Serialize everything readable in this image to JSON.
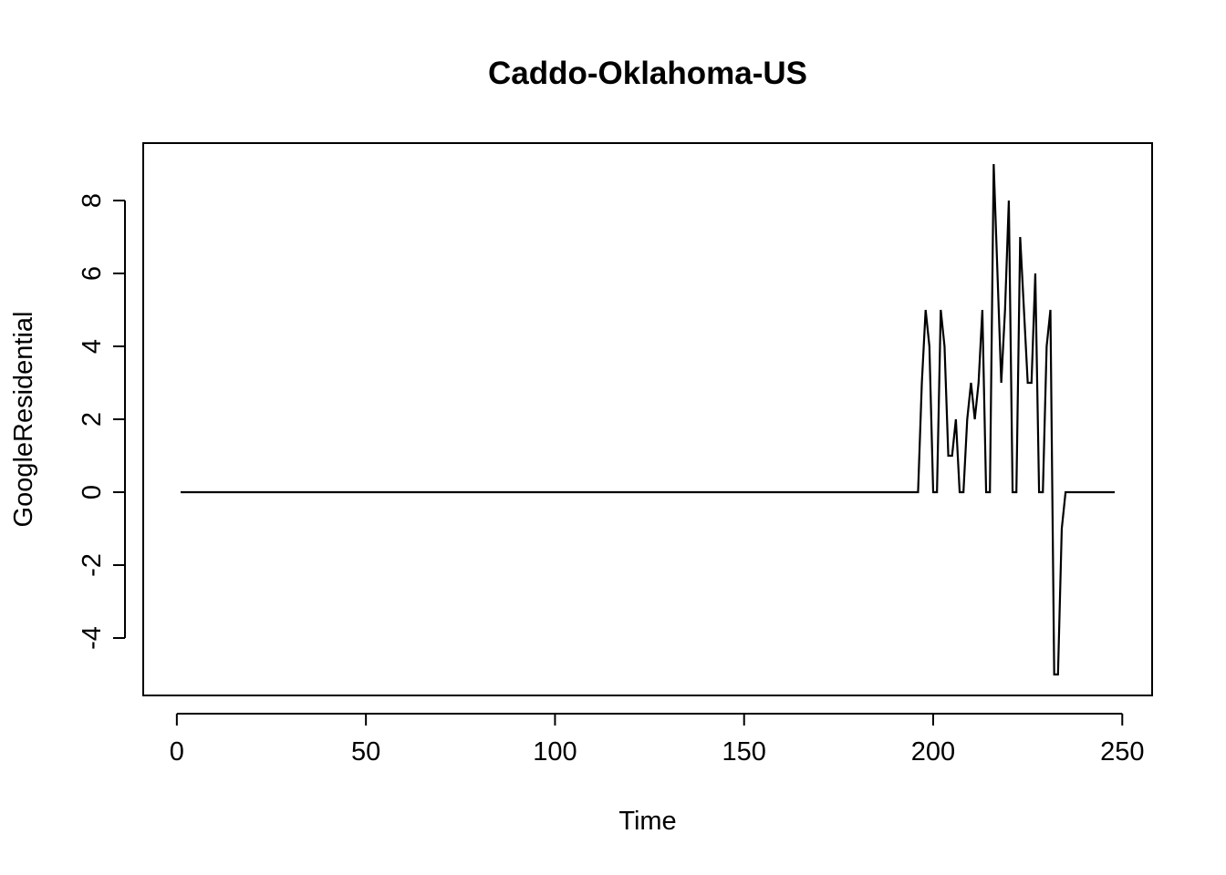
{
  "chart_data": {
    "type": "line",
    "title": "Caddo-Oklahoma-US",
    "xlabel": "Time",
    "ylabel": "GoogleResidential",
    "xlim": [
      1,
      248
    ],
    "ylim": [
      -5,
      9
    ],
    "x_ticks": [
      0,
      50,
      100,
      150,
      200,
      250
    ],
    "y_ticks": [
      -4,
      -2,
      0,
      2,
      4,
      6,
      8
    ],
    "grid": false,
    "line_color": "#000000",
    "series": [
      {
        "x": [
          1,
          196,
          197,
          198,
          199,
          200,
          201,
          202,
          203,
          204,
          205,
          206,
          207,
          208,
          209,
          210,
          211,
          212,
          213,
          214,
          215,
          216,
          217,
          218,
          219,
          220,
          221,
          222,
          223,
          224,
          225,
          226,
          227,
          228,
          229,
          230,
          231,
          232,
          233,
          234,
          235,
          248
        ],
        "values": [
          0,
          0,
          3,
          5,
          4,
          0,
          0,
          5,
          4,
          1,
          1,
          2,
          0,
          0,
          2,
          3,
          2,
          3,
          5,
          0,
          0,
          9,
          6,
          3,
          5,
          8,
          0,
          0,
          7,
          5,
          3,
          3,
          6,
          0,
          0,
          4,
          5,
          -5,
          -5,
          -1,
          0,
          0
        ]
      }
    ]
  }
}
